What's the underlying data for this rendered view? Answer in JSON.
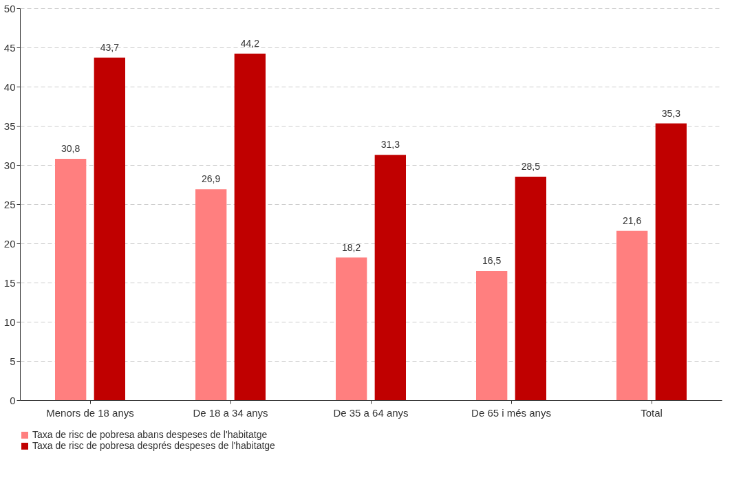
{
  "chart_data": {
    "type": "bar",
    "categories": [
      "Menors de 18 anys",
      "De 18 a 34 anys",
      "De 35 a 64 anys",
      "De 65 i més anys",
      "Total"
    ],
    "series": [
      {
        "name": "Taxa de risc de pobresa abans despeses de l'habitatge",
        "color": "#ff7f7f",
        "values": [
          30.8,
          26.9,
          18.2,
          16.5,
          21.6
        ],
        "value_labels": [
          "30,8",
          "26,9",
          "18,2",
          "16,5",
          "21,6"
        ]
      },
      {
        "name": "Taxa de risc de pobresa després despeses de l'habitatge",
        "color": "#c00000",
        "values": [
          43.7,
          44.2,
          31.3,
          28.5,
          35.3
        ],
        "value_labels": [
          "43,7",
          "44,2",
          "31,3",
          "28,5",
          "35,3"
        ]
      }
    ],
    "ylim": [
      0,
      50
    ],
    "yticks": [
      0,
      5,
      10,
      15,
      20,
      25,
      30,
      35,
      40,
      45,
      50
    ],
    "grid": "y",
    "legend": "bottom"
  }
}
